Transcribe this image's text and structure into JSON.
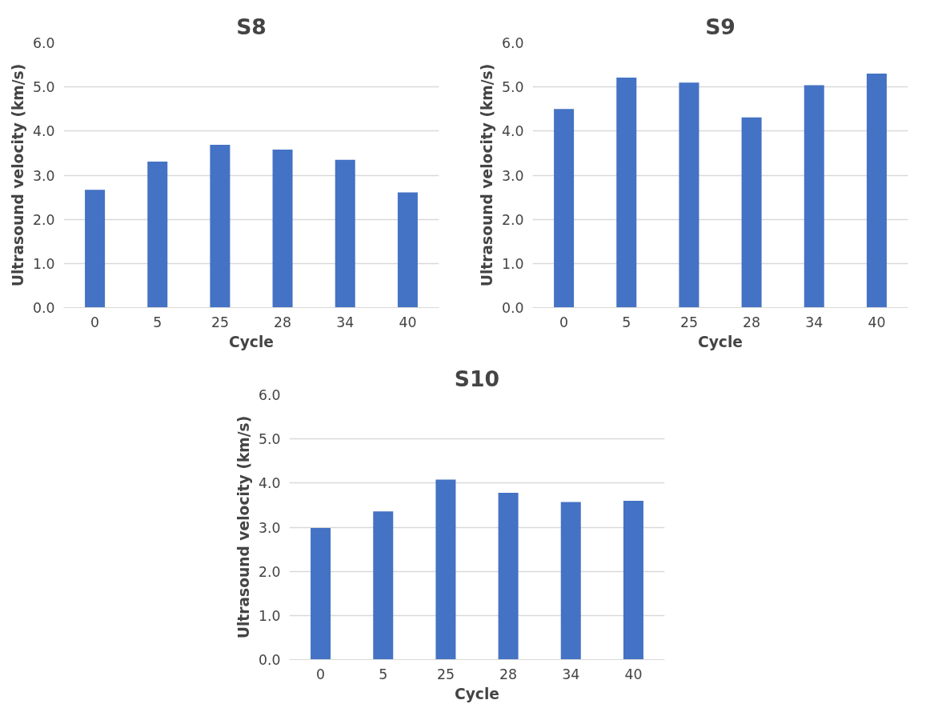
{
  "chart_data": [
    {
      "type": "bar",
      "title": "S8",
      "xlabel": "Cycle",
      "ylabel": "Ultrasound velocity (km/s)",
      "categories": [
        "0",
        "5",
        "25",
        "28",
        "34",
        "40"
      ],
      "color": "#4472c4",
      "values": [
        2.67,
        3.31,
        3.69,
        3.58,
        3.35,
        2.61
      ],
      "ylim": [
        0,
        6
      ],
      "yticks": [
        {
          "value": 0,
          "label": "0.0"
        },
        {
          "value": 1,
          "label": "1.0"
        },
        {
          "value": 2,
          "label": "2.0"
        },
        {
          "value": 3,
          "label": "3.0"
        },
        {
          "value": 4,
          "label": "4.0"
        },
        {
          "value": 5,
          "label": "5.0"
        },
        {
          "value": 6,
          "label": "6.0"
        }
      ],
      "grid": "y"
    },
    {
      "type": "bar",
      "title": "S9",
      "xlabel": "Cycle",
      "ylabel": "Ultrasound velocity (km/s)",
      "categories": [
        "0",
        "5",
        "25",
        "28",
        "34",
        "40"
      ],
      "color": "#4472c4",
      "values": [
        4.5,
        5.21,
        5.1,
        4.31,
        5.04,
        5.3
      ],
      "ylim": [
        0,
        6
      ],
      "yticks": [
        {
          "value": 0,
          "label": "0.0"
        },
        {
          "value": 1,
          "label": "1.0"
        },
        {
          "value": 2,
          "label": "2.0"
        },
        {
          "value": 3,
          "label": "3.0"
        },
        {
          "value": 4,
          "label": "4.0"
        },
        {
          "value": 5,
          "label": "5.0"
        },
        {
          "value": 6,
          "label": "6.0"
        }
      ],
      "grid": "y"
    },
    {
      "type": "bar",
      "title": "S10",
      "xlabel": "Cycle",
      "ylabel": "Ultrasound velocity (km/s)",
      "categories": [
        "0",
        "5",
        "25",
        "28",
        "34",
        "40"
      ],
      "color": "#4472c4",
      "values": [
        2.98,
        3.36,
        4.08,
        3.78,
        3.57,
        3.6
      ],
      "ylim": [
        0,
        6
      ],
      "yticks": [
        {
          "value": 0,
          "label": "0.0"
        },
        {
          "value": 1,
          "label": "1.0"
        },
        {
          "value": 2,
          "label": "2.0"
        },
        {
          "value": 3,
          "label": "3.0"
        },
        {
          "value": 4,
          "label": "4.0"
        },
        {
          "value": 5,
          "label": "5.0"
        },
        {
          "value": 6,
          "label": "6.0"
        }
      ],
      "grid": "y"
    }
  ]
}
